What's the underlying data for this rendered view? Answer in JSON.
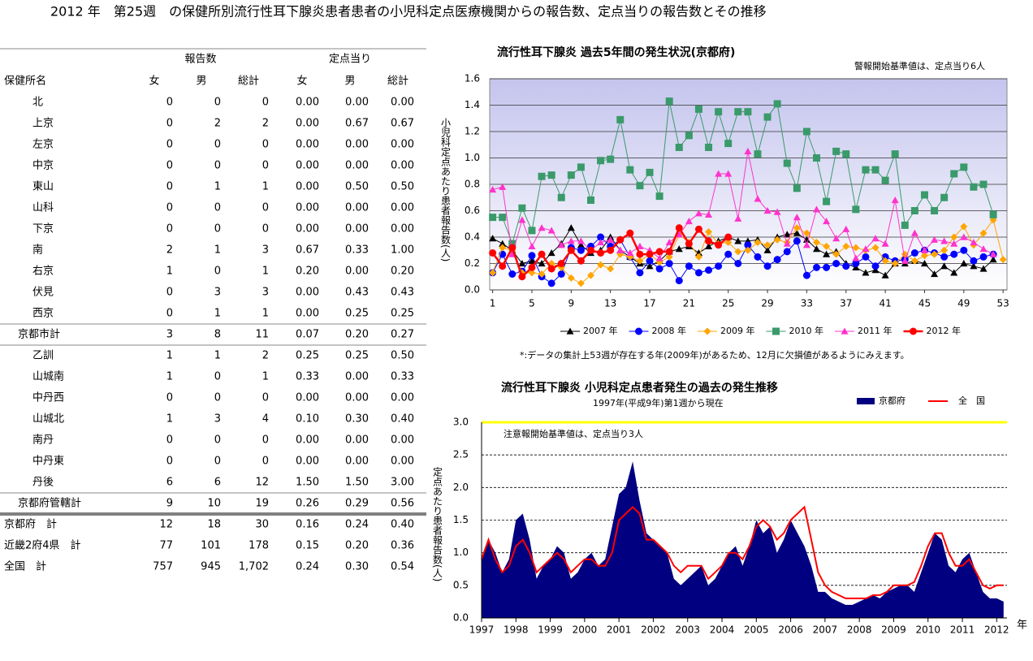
{
  "title": "2012 年　第25週　の保健所別流行性耳下腺炎患者患者の小児科定点医療機関からの報告数、定点当りの報告数とその推移",
  "table": {
    "group_headers": [
      "報告数",
      "定点当り"
    ],
    "columns": [
      "保健所名",
      "女",
      "男",
      "総計",
      "女",
      "男",
      "総計"
    ],
    "rows": [
      [
        "北",
        "0",
        "0",
        "0",
        "0.00",
        "0.00",
        "0.00"
      ],
      [
        "上京",
        "0",
        "2",
        "2",
        "0.00",
        "0.67",
        "0.67"
      ],
      [
        "左京",
        "0",
        "0",
        "0",
        "0.00",
        "0.00",
        "0.00"
      ],
      [
        "中京",
        "0",
        "0",
        "0",
        "0.00",
        "0.00",
        "0.00"
      ],
      [
        "東山",
        "0",
        "1",
        "1",
        "0.00",
        "0.50",
        "0.50"
      ],
      [
        "山科",
        "0",
        "0",
        "0",
        "0.00",
        "0.00",
        "0.00"
      ],
      [
        "下京",
        "0",
        "0",
        "0",
        "0.00",
        "0.00",
        "0.00"
      ],
      [
        "南",
        "2",
        "1",
        "3",
        "0.67",
        "0.33",
        "1.00"
      ],
      [
        "右京",
        "1",
        "0",
        "1",
        "0.20",
        "0.00",
        "0.20"
      ],
      [
        "伏見",
        "0",
        "3",
        "3",
        "0.00",
        "0.43",
        "0.43"
      ],
      [
        "西京",
        "0",
        "1",
        "1",
        "0.00",
        "0.25",
        "0.25"
      ],
      [
        "京都市計",
        "3",
        "8",
        "11",
        "0.07",
        "0.20",
        "0.27"
      ],
      [
        "乙訓",
        "1",
        "1",
        "2",
        "0.25",
        "0.25",
        "0.50"
      ],
      [
        "山城南",
        "1",
        "0",
        "1",
        "0.33",
        "0.00",
        "0.33"
      ],
      [
        "中丹西",
        "0",
        "0",
        "0",
        "0.00",
        "0.00",
        "0.00"
      ],
      [
        "山城北",
        "1",
        "3",
        "4",
        "0.10",
        "0.30",
        "0.40"
      ],
      [
        "南丹",
        "0",
        "0",
        "0",
        "0.00",
        "0.00",
        "0.00"
      ],
      [
        "中丹東",
        "0",
        "0",
        "0",
        "0.00",
        "0.00",
        "0.00"
      ],
      [
        "丹後",
        "6",
        "6",
        "12",
        "1.50",
        "1.50",
        "3.00"
      ],
      [
        "京都府管轄計",
        "9",
        "10",
        "19",
        "0.26",
        "0.29",
        "0.56"
      ],
      [
        "京都府　計",
        "12",
        "18",
        "30",
        "0.16",
        "0.24",
        "0.40"
      ],
      [
        "近畿2府4県　計",
        "77",
        "101",
        "178",
        "0.15",
        "0.20",
        "0.36"
      ],
      [
        "全国　計",
        "757",
        "945",
        "1,702",
        "0.24",
        "0.30",
        "0.54"
      ]
    ]
  },
  "chart_data": [
    {
      "type": "line",
      "title": "流行性耳下腺炎 過去5年間の発生状況(京都府)",
      "annotation": "警報開始基準値は、定点当り6人",
      "y_label": "小児科定点あたり患者報告数(人)",
      "footnote": "*:データの集計上53週が存在する年(2009年)があるため、12月に欠損値があるようにみえます。",
      "x": [
        1,
        2,
        3,
        4,
        5,
        6,
        7,
        8,
        9,
        10,
        11,
        12,
        13,
        14,
        15,
        16,
        17,
        18,
        19,
        20,
        21,
        22,
        23,
        24,
        25,
        26,
        27,
        28,
        29,
        30,
        31,
        32,
        33,
        34,
        35,
        36,
        37,
        38,
        39,
        40,
        41,
        42,
        43,
        44,
        45,
        46,
        47,
        48,
        49,
        50,
        51,
        52,
        53
      ],
      "xlim": [
        0.7,
        53.4
      ],
      "xticks": [
        1,
        5,
        9,
        13,
        17,
        21,
        25,
        29,
        33,
        37,
        41,
        45,
        49,
        53
      ],
      "ylim": [
        0,
        1.6
      ],
      "yticks": [
        {
          "value": 0,
          "label": "0.0"
        },
        0.2,
        0.4,
        0.6,
        0.8,
        {
          "value": 1,
          "label": "1.0"
        },
        1.2,
        1.4,
        1.6
      ],
      "grid": true,
      "series": [
        {
          "name": "2007 年",
          "color": "#000000",
          "marker": "triangle",
          "line_width": 1,
          "values": [
            0.39,
            0.35,
            0.3,
            0.2,
            0.22,
            0.2,
            0.28,
            0.35,
            0.47,
            0.34,
            0.28,
            0.3,
            0.4,
            0.3,
            0.25,
            0.2,
            0.18,
            0.22,
            0.29,
            0.31,
            0.33,
            0.28,
            0.33,
            0.37,
            0.4,
            0.37,
            0.37,
            0.38,
            0.3,
            0.4,
            0.42,
            0.43,
            0.38,
            0.31,
            0.27,
            0.29,
            0.2,
            0.17,
            0.13,
            0.15,
            0.11,
            0.2,
            0.2,
            0.22,
            0.2,
            0.12,
            0.18,
            0.13,
            0.2,
            0.18,
            0.16,
            0.23,
            null
          ]
        },
        {
          "name": "2008 年",
          "color": "#0000ff",
          "marker": "circle",
          "line_width": 1,
          "values": [
            0.13,
            0.27,
            0.12,
            0.14,
            0.26,
            0.1,
            0.05,
            0.12,
            0.32,
            0.3,
            0.33,
            0.4,
            0.33,
            0.38,
            0.25,
            0.13,
            0.22,
            0.16,
            0.2,
            0.07,
            0.18,
            0.13,
            0.15,
            0.18,
            0.27,
            0.2,
            0.34,
            0.25,
            0.18,
            0.23,
            0.29,
            0.37,
            0.11,
            0.17,
            0.17,
            0.2,
            0.18,
            0.2,
            0.25,
            0.18,
            0.25,
            0.22,
            0.23,
            0.28,
            0.3,
            0.28,
            0.25,
            0.27,
            0.3,
            0.22,
            0.25,
            0.27,
            null
          ]
        },
        {
          "name": "2009 年",
          "color": "#ffa500",
          "marker": "diamond",
          "line_width": 1,
          "values": [
            0.13,
            0.32,
            0.3,
            0.13,
            0.13,
            0.12,
            0.2,
            0.17,
            0.09,
            0.05,
            0.11,
            0.19,
            0.16,
            0.27,
            0.25,
            0.22,
            0.27,
            0.21,
            0.25,
            0.42,
            0.36,
            0.25,
            0.44,
            0.35,
            0.36,
            0.29,
            0.3,
            0.36,
            0.34,
            0.38,
            0.36,
            0.47,
            0.43,
            0.36,
            0.33,
            0.27,
            0.33,
            0.32,
            0.3,
            0.32,
            0.22,
            0.2,
            0.27,
            0.22,
            0.26,
            0.27,
            0.3,
            0.4,
            0.48,
            0.34,
            0.43,
            0.53,
            0.23
          ]
        },
        {
          "name": "2010 年",
          "color": "#3a9a6a",
          "marker": "square",
          "line_width": 1,
          "values": [
            0.55,
            0.55,
            0.35,
            0.62,
            0.45,
            0.86,
            0.87,
            0.7,
            0.87,
            0.93,
            0.68,
            0.98,
            0.99,
            1.29,
            0.91,
            0.79,
            0.89,
            0.71,
            1.43,
            1.08,
            1.17,
            1.37,
            1.08,
            1.35,
            1.11,
            1.35,
            1.35,
            1.03,
            1.31,
            1.41,
            0.96,
            0.77,
            1.2,
            1.0,
            0.67,
            1.05,
            1.03,
            0.61,
            0.91,
            0.91,
            0.83,
            1.03,
            0.49,
            0.6,
            0.72,
            0.6,
            0.7,
            0.88,
            0.93,
            0.78,
            0.8,
            0.57,
            null
          ]
        },
        {
          "name": "2011 年",
          "color": "#ff33cc",
          "marker": "triangle",
          "line_width": 1,
          "values": [
            0.76,
            0.78,
            0.27,
            0.53,
            0.33,
            0.47,
            0.45,
            0.34,
            0.37,
            0.37,
            0.3,
            0.36,
            0.38,
            0.3,
            0.28,
            0.33,
            0.3,
            0.24,
            0.36,
            0.42,
            0.52,
            0.58,
            0.57,
            0.88,
            0.88,
            0.54,
            1.05,
            0.69,
            0.6,
            0.59,
            0.35,
            0.55,
            0.34,
            0.61,
            0.52,
            0.39,
            0.46,
            0.24,
            0.31,
            0.39,
            0.35,
            0.68,
            0.22,
            0.43,
            0.3,
            0.38,
            0.37,
            0.35,
            0.4,
            0.36,
            0.31,
            0.27,
            null
          ]
        },
        {
          "name": "2012 年",
          "color": "#ff0000",
          "marker": "circle",
          "line_width": 2.5,
          "values": [
            0.28,
            0.18,
            0.32,
            0.1,
            0.17,
            0.27,
            0.16,
            0.2,
            0.3,
            0.22,
            0.3,
            0.28,
            0.3,
            0.38,
            0.43,
            0.27,
            0.27,
            0.29,
            0.29,
            0.47,
            0.35,
            0.46,
            0.37,
            0.34,
            0.4,
            null,
            null,
            null,
            null,
            null,
            null,
            null,
            null,
            null,
            null,
            null,
            null,
            null,
            null,
            null,
            null,
            null,
            null,
            null,
            null,
            null,
            null,
            null,
            null,
            null,
            null,
            null,
            null
          ]
        }
      ]
    },
    {
      "type": "area",
      "title": "流行性耳下腺炎 小児科定点患者発生の過去の発生推移",
      "subtitle": "1997年(平成9年)第1週から現在",
      "annotation": "注意報開始基準値は、定点当り3人",
      "y_label": "定点あたり患者報告数(人)",
      "x_label": "年",
      "threshold_line": {
        "value": 3,
        "color": "#ffff00"
      },
      "x": [
        1997,
        1997.2,
        1997.4,
        1997.6,
        1997.8,
        1998,
        1998.2,
        1998.4,
        1998.6,
        1998.8,
        1999,
        1999.2,
        1999.4,
        1999.6,
        1999.8,
        2000,
        2000.2,
        2000.4,
        2000.6,
        2000.8,
        2001,
        2001.2,
        2001.4,
        2001.6,
        2001.8,
        2002,
        2002.2,
        2002.4,
        2002.6,
        2002.8,
        2003,
        2003.2,
        2003.4,
        2003.6,
        2003.8,
        2004,
        2004.2,
        2004.4,
        2004.6,
        2004.8,
        2005,
        2005.2,
        2005.4,
        2005.6,
        2005.8,
        2006,
        2006.2,
        2006.4,
        2006.6,
        2006.8,
        2007,
        2007.2,
        2007.4,
        2007.6,
        2007.8,
        2008,
        2008.2,
        2008.4,
        2008.6,
        2008.8,
        2009,
        2009.2,
        2009.4,
        2009.6,
        2009.8,
        2010,
        2010.2,
        2010.4,
        2010.6,
        2010.8,
        2011,
        2011.2,
        2011.4,
        2011.6,
        2011.8,
        2012,
        2012.2
      ],
      "xlim": [
        1997,
        2012.3
      ],
      "xticks": [
        1997,
        1998,
        1999,
        2000,
        2001,
        2002,
        2003,
        2004,
        2005,
        2006,
        2007,
        2008,
        2009,
        2010,
        2011,
        2012
      ],
      "ylim": [
        0,
        3
      ],
      "yticks": [
        {
          "value": 0,
          "label": "0.0"
        },
        0.5,
        {
          "value": 1,
          "label": "1.0"
        },
        1.5,
        {
          "value": 2,
          "label": "2.0"
        },
        2.5,
        {
          "value": 3,
          "label": "3.0"
        }
      ],
      "grid": true,
      "series": [
        {
          "name": "京都府",
          "color": "#000080",
          "type": "area",
          "values": [
            0.9,
            1.2,
            1.0,
            0.7,
            0.9,
            1.5,
            1.6,
            1.2,
            0.6,
            0.8,
            0.9,
            1.1,
            1.0,
            0.6,
            0.7,
            0.9,
            1.0,
            0.8,
            0.9,
            1.4,
            1.9,
            2.0,
            2.4,
            1.8,
            1.3,
            1.2,
            1.1,
            1.0,
            0.6,
            0.5,
            0.6,
            0.7,
            0.8,
            0.5,
            0.6,
            0.8,
            1.0,
            1.1,
            0.8,
            1.1,
            1.5,
            1.3,
            1.4,
            1.0,
            1.2,
            1.5,
            1.3,
            1.1,
            0.8,
            0.4,
            0.4,
            0.3,
            0.25,
            0.2,
            0.2,
            0.25,
            0.3,
            0.35,
            0.3,
            0.4,
            0.45,
            0.5,
            0.5,
            0.4,
            0.7,
            1.0,
            1.3,
            1.2,
            0.8,
            0.7,
            0.9,
            1.0,
            0.7,
            0.4,
            0.3,
            0.3,
            0.25
          ]
        },
        {
          "name": "全　国",
          "color": "#ff0000",
          "type": "line",
          "values": [
            0.9,
            1.2,
            0.9,
            0.7,
            0.8,
            1.1,
            1.2,
            1.0,
            0.7,
            0.8,
            0.9,
            1.0,
            0.9,
            0.7,
            0.8,
            0.9,
            0.9,
            0.8,
            0.8,
            1.0,
            1.5,
            1.6,
            1.7,
            1.6,
            1.2,
            1.2,
            1.1,
            1.0,
            0.8,
            0.7,
            0.8,
            0.8,
            0.8,
            0.6,
            0.7,
            0.8,
            1.0,
            1.0,
            0.9,
            1.1,
            1.4,
            1.5,
            1.4,
            1.2,
            1.3,
            1.5,
            1.6,
            1.7,
            1.2,
            0.7,
            0.5,
            0.4,
            0.35,
            0.3,
            0.3,
            0.3,
            0.3,
            0.35,
            0.35,
            0.4,
            0.5,
            0.5,
            0.5,
            0.55,
            0.8,
            1.1,
            1.3,
            1.3,
            1.0,
            0.8,
            0.8,
            0.9,
            0.7,
            0.5,
            0.45,
            0.5,
            0.5
          ]
        }
      ]
    }
  ]
}
